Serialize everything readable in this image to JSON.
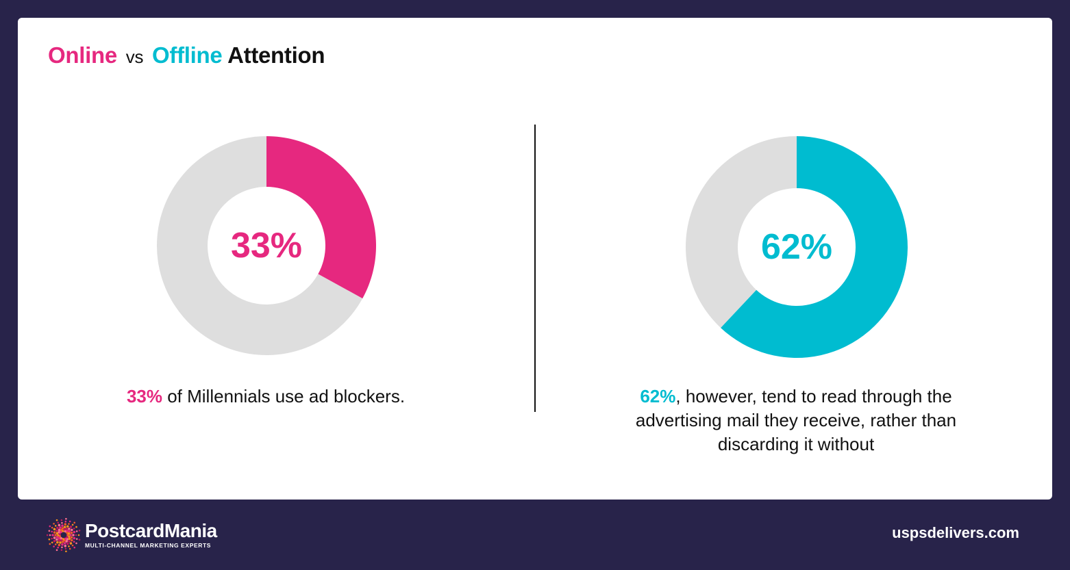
{
  "title": {
    "online": "Online",
    "vs": "vs",
    "offline": "Offline",
    "attention": "Attention"
  },
  "colors": {
    "online": "#e6287f",
    "offline": "#00bcd0",
    "remainder": "#dedede",
    "background": "#28234a"
  },
  "chart_data": [
    {
      "type": "pie",
      "series": [
        {
          "values": [
            33,
            67
          ]
        }
      ],
      "center_label": "33%",
      "caption_pct": "33%",
      "caption_text": " of Millennials use ad blockers."
    },
    {
      "type": "pie",
      "series": [
        {
          "values": [
            62,
            38
          ]
        }
      ],
      "center_label": "62%",
      "caption_pct": "62%",
      "caption_text": ", however, tend to read through the advertising mail they receive, rather than discarding it without"
    }
  ],
  "footer": {
    "brand": "PostcardMania",
    "tagline": "MULTI-CHANNEL MARKETING EXPERTS",
    "site": "uspsdelivers.com"
  }
}
